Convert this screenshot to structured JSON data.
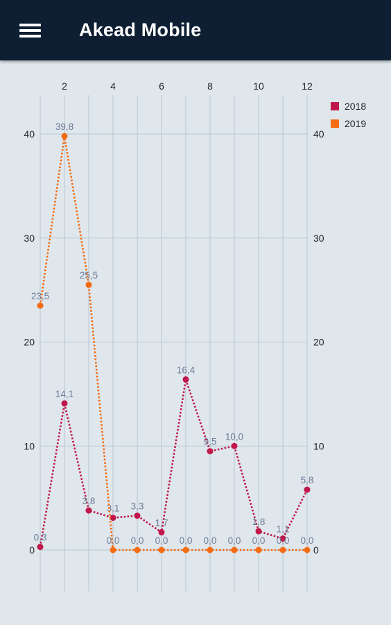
{
  "app": {
    "title": "Akead Mobile",
    "menu_icon": "hamburger-menu-icon"
  },
  "colors": {
    "appbar": "#0f1f33",
    "background": "#dfe7ec",
    "grid": "#b9c6d2",
    "series_2018": "#c0174a",
    "series_2019": "#f46b12",
    "data_label": "#6b7a96"
  },
  "chart_data": {
    "type": "line",
    "x": [
      1,
      2,
      3,
      4,
      5,
      6,
      7,
      8,
      9,
      10,
      11,
      12
    ],
    "x_ticks": [
      "2",
      "4",
      "6",
      "8",
      "10",
      "12"
    ],
    "y_ticks": [
      "0",
      "10",
      "20",
      "30",
      "40"
    ],
    "xlim": [
      1,
      12
    ],
    "ylim": [
      -4,
      44
    ],
    "grid": true,
    "legend_position": "top-right",
    "line_style": "dotted",
    "series": [
      {
        "name": "2018",
        "color": "#c0174a",
        "values": [
          0.3,
          14.1,
          3.8,
          3.1,
          3.3,
          1.7,
          16.4,
          9.5,
          10.0,
          1.8,
          1.1,
          5.8
        ],
        "labels": [
          "0,3",
          "14,1",
          "3,8",
          "3,1",
          "3,3",
          "1,7",
          "16,4",
          "9,5",
          "10,0",
          "1,8",
          "1,1",
          "5,8"
        ]
      },
      {
        "name": "2019",
        "color": "#f46b12",
        "values": [
          23.5,
          39.8,
          25.5,
          0.0,
          0.0,
          0.0,
          0.0,
          0.0,
          0.0,
          0.0,
          0.0,
          0.0
        ],
        "labels": [
          "23,5",
          "39,8",
          "25,5",
          "0,0",
          "0,0",
          "0,0",
          "0,0",
          "0,0",
          "0,0",
          "0,0",
          "0,0",
          "0,0"
        ]
      }
    ]
  }
}
